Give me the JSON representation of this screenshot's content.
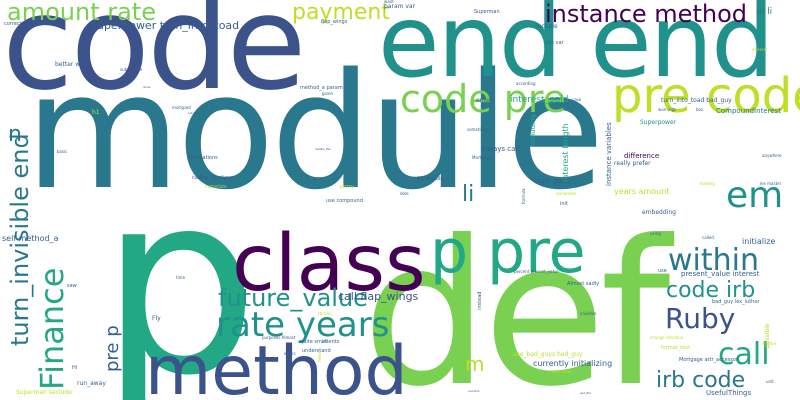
{
  "palette": {
    "purple": "#440154",
    "indigo": "#3b528b",
    "blue": "#355f8d",
    "teal": "#21918c",
    "dteal": "#2a788e",
    "green": "#22a884",
    "lgreen": "#7ad151",
    "lime": "#bddf26"
  },
  "words": [
    "module",
    "def",
    "p",
    "code",
    "end end",
    "class",
    "method",
    "p pre",
    "code pre",
    "pre code",
    "em",
    "amount rate",
    "instance method",
    "payment",
    "Finance",
    "rate years",
    "turn_invisible end",
    "future_value",
    "pre p",
    "within",
    "Ruby",
    "call",
    "code irb",
    "irb code",
    "li",
    "n",
    "m",
    "Superpower turn_into_toad",
    "call flap_wings",
    "self method_a",
    "interest_paid",
    "include",
    "init var",
    "param var",
    "ul li",
    "turn_into_toad bad_guy",
    "CompoundInterest",
    "Superpower",
    "always call",
    "instance variables",
    "interest length",
    "difference",
    "years amount",
    "logic goes",
    "embedding",
    "initialize",
    "present_value interest",
    "bad_guy lex_luthor",
    "UsefulThings",
    "currently initializing",
    "see_bad_guys bad_guy",
    "Mortgage attr_accessor",
    "Almost sadly",
    "really prefer",
    "calculations",
    "calling functions",
    "better way",
    "run_away",
    "Superman seclude",
    "correct Superpower",
    "flap_wings",
    "submodule",
    "method_a param",
    "MyModule",
    "use compound",
    "proxy",
    "understand",
    "quite small",
    "intents",
    "purposes Almost",
    "Fly",
    "enter",
    "according",
    "sometimes",
    "including",
    "Mortgage",
    "mixtyped",
    "given",
    "basic",
    "format_text",
    "percent present_value",
    "invisible",
    "instead",
    "warnings",
    "interest",
    "using",
    "called",
    "loading",
    "possible",
    "change situation",
    "written",
    "unit",
    "thrown",
    "errors",
    "need",
    "use",
    "time",
    "saw",
    "Hi",
    "init",
    "Superman",
    "case",
    "want",
    "may",
    "instantiate",
    "delete_file",
    "formula",
    "dole",
    "remember",
    "also",
    "lex master",
    "anywhere",
    "get_file",
    "lucidlux",
    "add thing",
    "code",
    "done",
    "solution",
    "h1",
    "box",
    "know",
    "ok",
    "math",
    "eat",
    "p1"
  ]
}
